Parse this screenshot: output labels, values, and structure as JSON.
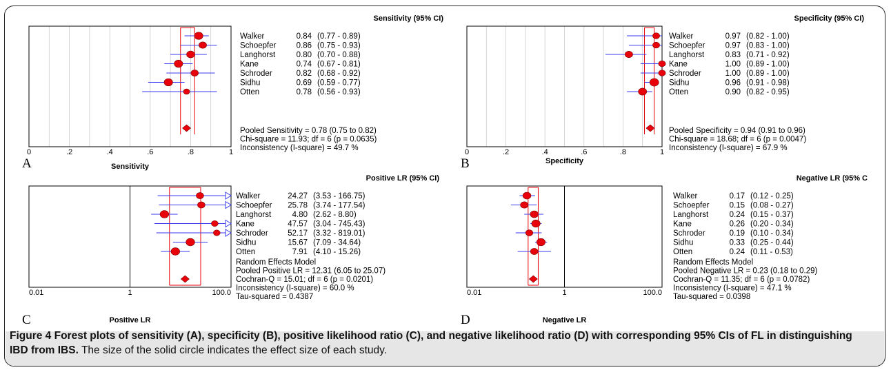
{
  "caption": {
    "label": "Figure 4",
    "bold_text": "Forest plots of sensitivity (A), specificity (B), positive likelihood ratio (C), and negative likelihood ratio (D) with corresponding 95% CIs of FL in distinguishing IBD from IBS.",
    "rest_text": "The size of the solid circle indicates the effect size of each study."
  },
  "colors": {
    "point": "#e8000b",
    "point_stroke": "#7a0000",
    "ci": "#3a3af0",
    "ref": "#e8000b",
    "frame": "#000000",
    "grid": "#cccccc"
  },
  "chart_data": [
    {
      "panel": "A",
      "type": "forest",
      "scale": "linear",
      "xlabel": "Sensitivity",
      "header": "Sensitivity (95% CI)",
      "x_ticks": [
        "0",
        ".2",
        ".4",
        ".6",
        ".8",
        "1"
      ],
      "xlim": [
        0,
        1
      ],
      "grid": true,
      "studies": [
        {
          "name": "Walker",
          "estimate": 0.84,
          "lower": 0.77,
          "upper": 0.89,
          "text": "0.84",
          "ci_text": "(0.77 - 0.89)",
          "weight": 1.0
        },
        {
          "name": "Schoepfer",
          "estimate": 0.86,
          "lower": 0.75,
          "upper": 0.93,
          "text": "0.86",
          "ci_text": "(0.75 - 0.93)",
          "weight": 0.8
        },
        {
          "name": "Langhorst",
          "estimate": 0.8,
          "lower": 0.7,
          "upper": 0.88,
          "text": "0.80",
          "ci_text": "(0.70 - 0.88)",
          "weight": 0.9
        },
        {
          "name": "Kane",
          "estimate": 0.74,
          "lower": 0.67,
          "upper": 0.81,
          "text": "0.74",
          "ci_text": "(0.67 - 0.81)",
          "weight": 1.0
        },
        {
          "name": "Schroder",
          "estimate": 0.82,
          "lower": 0.68,
          "upper": 0.92,
          "text": "0.82",
          "ci_text": "(0.68 - 0.92)",
          "weight": 0.75
        },
        {
          "name": "Sidhu",
          "estimate": 0.69,
          "lower": 0.59,
          "upper": 0.77,
          "text": "0.69",
          "ci_text": "(0.59 - 0.77)",
          "weight": 1.0
        },
        {
          "name": "Otten",
          "estimate": 0.78,
          "lower": 0.56,
          "upper": 0.93,
          "text": "0.78",
          "ci_text": "(0.56 - 0.93)",
          "weight": 0.5
        }
      ],
      "pooled": {
        "estimate": 0.78,
        "lower": 0.75,
        "upper": 0.82
      },
      "pooled_lines": [
        "Pooled Sensitivity = 0.78 (0.75 to 0.82)",
        "Chi-square = 11.93; df =  6 (p = 0.0635)",
        "Inconsistency (I-square) = 49.7 %"
      ]
    },
    {
      "panel": "B",
      "type": "forest",
      "scale": "linear",
      "xlabel": "Specificity",
      "header": "Specificity (95% CI)",
      "x_ticks": [
        "0",
        ".2",
        ".4",
        ".6",
        ".8",
        "1"
      ],
      "xlim": [
        0,
        1
      ],
      "grid": true,
      "studies": [
        {
          "name": "Walker",
          "estimate": 0.97,
          "lower": 0.82,
          "upper": 1.0,
          "text": "0.97",
          "ci_text": "(0.82 - 1.00)",
          "weight": 0.65
        },
        {
          "name": "Schoepfer",
          "estimate": 0.97,
          "lower": 0.83,
          "upper": 1.0,
          "text": "0.97",
          "ci_text": "(0.83 - 1.00)",
          "weight": 0.65
        },
        {
          "name": "Langhorst",
          "estimate": 0.83,
          "lower": 0.71,
          "upper": 0.92,
          "text": "0.83",
          "ci_text": "(0.71 - 0.92)",
          "weight": 0.8
        },
        {
          "name": "Kane",
          "estimate": 1.0,
          "lower": 0.89,
          "upper": 1.0,
          "text": "1.00",
          "ci_text": "(0.89 - 1.00)",
          "weight": 0.65
        },
        {
          "name": "Schroder",
          "estimate": 1.0,
          "lower": 0.89,
          "upper": 1.0,
          "text": "1.00",
          "ci_text": "(0.89 - 1.00)",
          "weight": 0.65
        },
        {
          "name": "Sidhu",
          "estimate": 0.96,
          "lower": 0.91,
          "upper": 0.98,
          "text": "0.96",
          "ci_text": "(0.91 - 0.98)",
          "weight": 1.1
        },
        {
          "name": "Otten",
          "estimate": 0.9,
          "lower": 0.82,
          "upper": 0.95,
          "text": "0.90",
          "ci_text": "(0.82 - 0.95)",
          "weight": 0.95
        }
      ],
      "pooled": {
        "estimate": 0.94,
        "lower": 0.91,
        "upper": 0.96
      },
      "pooled_lines": [
        "Pooled Specificity = 0.94 (0.91 to 0.96)",
        "Chi-square = 18.68; df =  6 (p = 0.0047)",
        "Inconsistency (I-square) = 67.9 %"
      ]
    },
    {
      "panel": "C",
      "type": "forest",
      "scale": "log",
      "xlabel": "Positive LR",
      "header": "Positive LR (95% CI)",
      "x_ticks": [
        "0.01",
        "1",
        "100.0"
      ],
      "xlim": [
        0.01,
        100
      ],
      "grid": false,
      "studies": [
        {
          "name": "Walker",
          "estimate": 24.27,
          "lower": 3.53,
          "upper": 166.75,
          "text": "24.27",
          "ci_text": "(3.53 - 166.75)",
          "weight": 0.75
        },
        {
          "name": "Schoepfer",
          "estimate": 25.78,
          "lower": 3.74,
          "upper": 177.54,
          "text": "25.78",
          "ci_text": "(3.74 - 177.54)",
          "weight": 0.75
        },
        {
          "name": "Langhorst",
          "estimate": 4.8,
          "lower": 2.62,
          "upper": 8.8,
          "text": "4.80",
          "ci_text": "(2.62 - 8.80)",
          "weight": 1.05
        },
        {
          "name": "Kane",
          "estimate": 47.57,
          "lower": 3.04,
          "upper": 745.43,
          "text": "47.57",
          "ci_text": "(3.04 - 745.43)",
          "weight": 0.6
        },
        {
          "name": "Schroder",
          "estimate": 52.17,
          "lower": 3.32,
          "upper": 819.01,
          "text": "52.17",
          "ci_text": "(3.32 - 819.01)",
          "weight": 0.6
        },
        {
          "name": "Sidhu",
          "estimate": 15.67,
          "lower": 7.09,
          "upper": 34.64,
          "text": "15.67",
          "ci_text": "(7.09 - 34.64)",
          "weight": 1.05
        },
        {
          "name": "Otten",
          "estimate": 7.91,
          "lower": 4.1,
          "upper": 15.26,
          "text": "7.91",
          "ci_text": "(4.10 - 15.26)",
          "weight": 1.05
        }
      ],
      "pooled": {
        "estimate": 12.31,
        "lower": 6.05,
        "upper": 25.07
      },
      "pooled_lines": [
        "Random Effects Model",
        "Pooled Positive LR = 12.31 (6.05 to 25.07)",
        "Cochran-Q = 15.01; df =  6 (p = 0.0201)",
        "Inconsistency (I-square) = 60.0 %",
        "Tau-squared = 0.4387"
      ]
    },
    {
      "panel": "D",
      "type": "forest",
      "scale": "log",
      "xlabel": "Negative LR",
      "header": "Negative LR (95% C",
      "x_ticks": [
        "0.01",
        "1",
        "100.0"
      ],
      "xlim": [
        0.01,
        100
      ],
      "grid": false,
      "studies": [
        {
          "name": "Walker",
          "estimate": 0.17,
          "lower": 0.12,
          "upper": 0.25,
          "text": "0.17",
          "ci_text": "(0.12 - 0.25)",
          "weight": 0.9
        },
        {
          "name": "Schoepfer",
          "estimate": 0.15,
          "lower": 0.08,
          "upper": 0.27,
          "text": "0.15",
          "ci_text": "(0.08 - 0.27)",
          "weight": 0.8
        },
        {
          "name": "Langhorst",
          "estimate": 0.24,
          "lower": 0.15,
          "upper": 0.37,
          "text": "0.24",
          "ci_text": "(0.15 - 0.37)",
          "weight": 0.9
        },
        {
          "name": "Kane",
          "estimate": 0.26,
          "lower": 0.2,
          "upper": 0.34,
          "text": "0.26",
          "ci_text": "(0.20 - 0.34)",
          "weight": 1.0
        },
        {
          "name": "Schroder",
          "estimate": 0.19,
          "lower": 0.1,
          "upper": 0.34,
          "text": "0.19",
          "ci_text": "(0.10 - 0.34)",
          "weight": 0.7
        },
        {
          "name": "Sidhu",
          "estimate": 0.33,
          "lower": 0.25,
          "upper": 0.44,
          "text": "0.33",
          "ci_text": "(0.25 - 0.44)",
          "weight": 1.0
        },
        {
          "name": "Otten",
          "estimate": 0.24,
          "lower": 0.11,
          "upper": 0.53,
          "text": "0.24",
          "ci_text": "(0.11 - 0.53)",
          "weight": 0.75
        }
      ],
      "pooled": {
        "estimate": 0.23,
        "lower": 0.18,
        "upper": 0.29
      },
      "pooled_lines": [
        "Random Effects Model",
        "Pooled Negative LR = 0.23 (0.18 to 0.29)",
        "Cochran-Q = 11.35; df =  6 (p = 0.0782)",
        "Inconsistency (I-square) = 47.1 %",
        "Tau-squared = 0.0398"
      ]
    }
  ]
}
